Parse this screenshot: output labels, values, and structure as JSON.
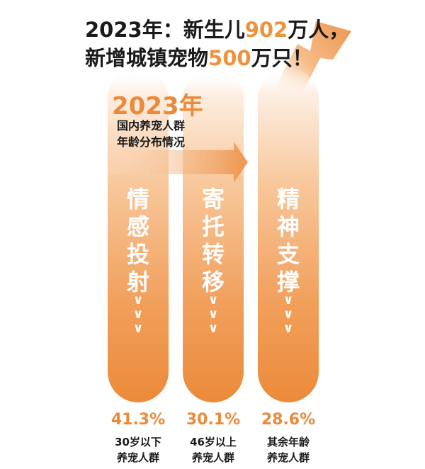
{
  "headline": {
    "line1_a": "2023年：新生儿",
    "line1_num": "902",
    "line1_b": "万人，",
    "line2_a": "新增城镇宠物",
    "line2_num": "500",
    "line2_b": "万只！"
  },
  "subtitle": {
    "year": "2023年",
    "line1": "国内养宠人群",
    "line2": "年龄分布情况"
  },
  "colors": {
    "accent": "#f0913c",
    "bar_top": "#fbe3cf",
    "bar_bottom": "#ec8a3a"
  },
  "chart_data": {
    "type": "bar",
    "title": "国内养宠人群年龄分布情况",
    "categories": [
      "30岁以下养宠人群",
      "46岁以上养宠人群",
      "其余年龄养宠人群"
    ],
    "values": [
      41.3,
      30.1,
      28.6
    ],
    "unit": "%",
    "bars": [
      {
        "chars": [
          "情",
          "感",
          "投",
          "射"
        ],
        "chevron": "∨",
        "percent": "41.3%",
        "group_line1": "30岁以下",
        "group_line2": "养宠人群"
      },
      {
        "chars": [
          "寄",
          "托",
          "转",
          "移"
        ],
        "chevron": "∨",
        "percent": "30.1%",
        "group_line1": "46岁以上",
        "group_line2": "养宠人群"
      },
      {
        "chars": [
          "精",
          "神",
          "支",
          "撑"
        ],
        "chevron": "∨",
        "percent": "28.6%",
        "group_line1": "其余年龄",
        "group_line2": "养宠人群"
      }
    ]
  }
}
